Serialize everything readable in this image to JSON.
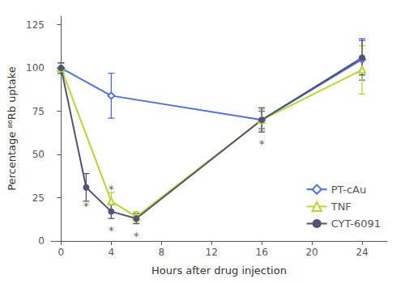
{
  "chart_data": {
    "type": "line",
    "xlabel": "Hours after drug injection",
    "ylabel": "Percentage ⁸⁶Rb uptake",
    "xlim": [
      -0.8,
      26
    ],
    "ylim": [
      0,
      130
    ],
    "xticks": [
      0,
      4,
      8,
      12,
      16,
      20,
      24
    ],
    "yticks": [
      0,
      25,
      50,
      75,
      100,
      125
    ],
    "grid": false,
    "legend": "lower right",
    "series": [
      {
        "name": "PT-cAu",
        "marker": "open_diamond",
        "x": [
          0,
          4,
          16,
          24
        ],
        "values": [
          100,
          84,
          70,
          105
        ],
        "yerr": [
          3,
          13,
          5,
          12
        ]
      },
      {
        "name": "TNF",
        "marker": "open_triangle",
        "x": [
          0,
          4,
          6,
          16,
          24
        ],
        "values": [
          100,
          23,
          14,
          70,
          99
        ],
        "yerr": [
          3,
          5,
          3,
          6,
          14
        ]
      },
      {
        "name": "CYT-6091",
        "marker": "circle",
        "x": [
          0,
          2,
          4,
          6,
          16,
          24
        ],
        "values": [
          100,
          31,
          17,
          13,
          70,
          106
        ],
        "yerr": [
          3,
          8,
          4,
          3,
          7,
          10
        ]
      }
    ],
    "annotations": [
      {
        "x": 2,
        "y": 20,
        "text": "*"
      },
      {
        "x": 4,
        "y": 6,
        "text": "*"
      },
      {
        "x": 6,
        "y": 3,
        "text": "*"
      },
      {
        "x": 4,
        "y": 30,
        "text": "*"
      },
      {
        "x": 16,
        "y": 56,
        "text": "*"
      }
    ]
  }
}
